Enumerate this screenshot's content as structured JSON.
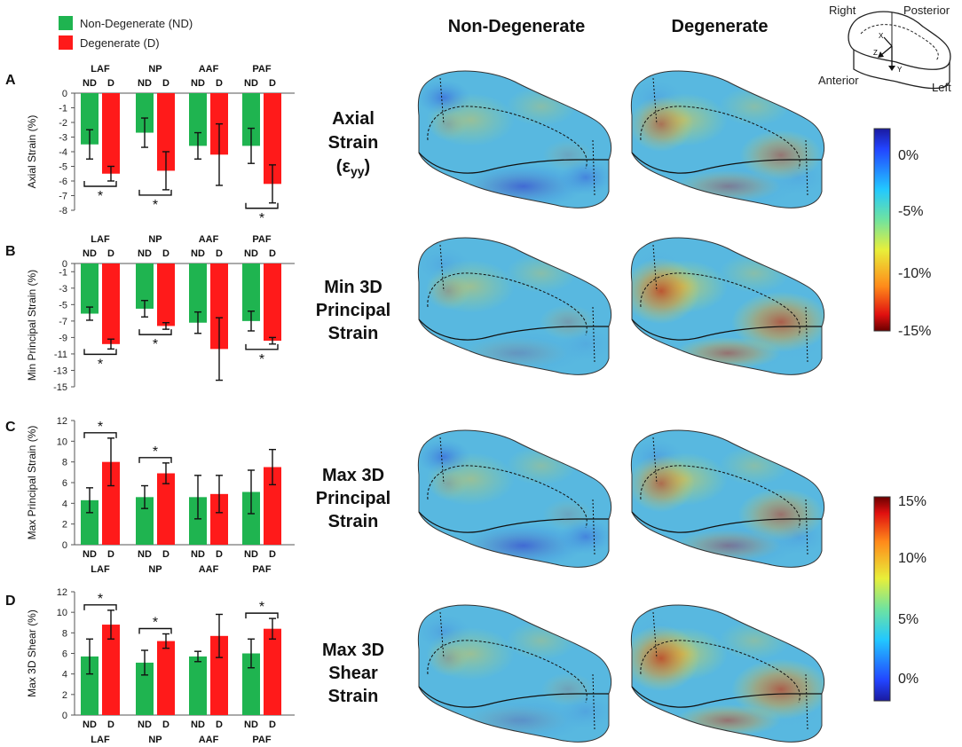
{
  "legend": [
    {
      "label": "Non-Degenerate (ND)",
      "color": "#1fb450"
    },
    {
      "label": "Degenerate (D)",
      "color": "#ff1a1a"
    }
  ],
  "group_labels": [
    "LAF",
    "NP",
    "AAF",
    "PAF"
  ],
  "bar_labels": [
    "ND",
    "D"
  ],
  "significance_marker": "*",
  "column_titles": [
    "Non-Degenerate",
    "Degenerate"
  ],
  "row_titles": [
    [
      "Axial",
      "Strain",
      "(εyy)"
    ],
    [
      "Min 3D",
      "Principal",
      "Strain"
    ],
    [
      "Max 3D",
      "Principal",
      "Strain"
    ],
    [
      "Max 3D",
      "Shear",
      "Strain"
    ]
  ],
  "orientation": {
    "right": "Right",
    "posterior": "Posterior",
    "anterior": "Anterior",
    "left": "Left",
    "x": "X",
    "y": "Y",
    "z": "Z"
  },
  "colorbar_compressive": {
    "labels": [
      "0%",
      "-5%",
      "-10%",
      "-15%"
    ]
  },
  "colorbar_tensile": {
    "labels": [
      "15%",
      "10%",
      "5%",
      "0%"
    ]
  },
  "colors": {
    "nd": "#1fb450",
    "d": "#ff1a1a"
  },
  "chart_data": [
    {
      "panel": "A",
      "type": "bar",
      "ylabel": "Axial Strain (%)",
      "ylim": [
        -8,
        0
      ],
      "ticks": [
        0,
        -1,
        -2,
        -3,
        -4,
        -5,
        -6,
        -7,
        -8
      ],
      "categories": [
        "LAF",
        "NP",
        "AAF",
        "PAF"
      ],
      "series": [
        {
          "name": "Non-Degenerate (ND)",
          "values": [
            -3.5,
            -2.7,
            -3.6,
            -3.6
          ],
          "errors": [
            1.0,
            1.0,
            0.9,
            1.2
          ]
        },
        {
          "name": "Degenerate (D)",
          "values": [
            -5.5,
            -5.3,
            -4.2,
            -6.2
          ],
          "errors": [
            0.5,
            1.3,
            2.1,
            1.3
          ]
        }
      ],
      "significant": [
        true,
        true,
        false,
        true
      ]
    },
    {
      "panel": "B",
      "type": "bar",
      "ylabel": "Min Principal Strain (%)",
      "ylim": [
        -15,
        0
      ],
      "ticks": [
        0,
        -1,
        -3,
        -5,
        -7,
        -9,
        -11,
        -13,
        -15
      ],
      "categories": [
        "LAF",
        "NP",
        "AAF",
        "PAF"
      ],
      "series": [
        {
          "name": "Non-Degenerate (ND)",
          "values": [
            -6.1,
            -5.5,
            -7.2,
            -7.0
          ],
          "errors": [
            0.8,
            1.0,
            1.3,
            1.2
          ]
        },
        {
          "name": "Degenerate (D)",
          "values": [
            -9.8,
            -7.6,
            -10.4,
            -9.4
          ],
          "errors": [
            0.6,
            0.4,
            3.8,
            0.4
          ]
        }
      ],
      "significant": [
        true,
        true,
        false,
        true
      ]
    },
    {
      "panel": "C",
      "type": "bar",
      "ylabel": "Max Principal Strain (%)",
      "ylim": [
        0,
        12
      ],
      "ticks": [
        0,
        2,
        4,
        6,
        8,
        10,
        12
      ],
      "categories": [
        "LAF",
        "NP",
        "AAF",
        "PAF"
      ],
      "series": [
        {
          "name": "Non-Degenerate (ND)",
          "values": [
            4.3,
            4.6,
            4.6,
            5.1
          ],
          "errors": [
            1.2,
            1.1,
            2.1,
            2.1
          ]
        },
        {
          "name": "Degenerate (D)",
          "values": [
            8.0,
            6.9,
            4.9,
            7.5
          ],
          "errors": [
            2.3,
            1.0,
            1.8,
            1.7
          ]
        }
      ],
      "significant": [
        true,
        true,
        false,
        false
      ]
    },
    {
      "panel": "D",
      "type": "bar",
      "ylabel": "Max 3D Shear (%)",
      "ylim": [
        0,
        12
      ],
      "ticks": [
        0,
        2,
        4,
        6,
        8,
        10,
        12
      ],
      "categories": [
        "LAF",
        "NP",
        "AAF",
        "PAF"
      ],
      "series": [
        {
          "name": "Non-Degenerate (ND)",
          "values": [
            5.7,
            5.1,
            5.7,
            6.0
          ],
          "errors": [
            1.7,
            1.2,
            0.5,
            1.4
          ]
        },
        {
          "name": "Degenerate (D)",
          "values": [
            8.8,
            7.2,
            7.7,
            8.4
          ],
          "errors": [
            1.4,
            0.7,
            2.1,
            1.0
          ]
        }
      ],
      "significant": [
        true,
        true,
        false,
        true
      ]
    }
  ]
}
